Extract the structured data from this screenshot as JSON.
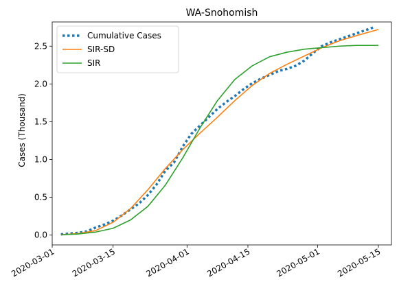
{
  "chart_data": {
    "type": "line",
    "title": "WA-Snohomish",
    "xlabel": "",
    "ylabel": "Cases (Thousand)",
    "x_axis": "date",
    "xlim": [
      "2020-03-01",
      "2020-05-18"
    ],
    "ylim": [
      -0.13,
      2.82
    ],
    "x_ticks": [
      "2020-03-01",
      "2020-03-15",
      "2020-04-01",
      "2020-04-15",
      "2020-05-01",
      "2020-05-15"
    ],
    "y_ticks": [
      0.0,
      0.5,
      1.0,
      1.5,
      2.0,
      2.5
    ],
    "y_tick_labels": [
      "0.0",
      "0.5",
      "1.0",
      "1.5",
      "2.0",
      "2.5"
    ],
    "grid": false,
    "legend": "top-left",
    "series": [
      {
        "name": "Cumulative Cases",
        "style": "dotted",
        "color": "#1f77b4",
        "points": [
          [
            "2020-03-03",
            0.01
          ],
          [
            "2020-03-05",
            0.02
          ],
          [
            "2020-03-07",
            0.03
          ],
          [
            "2020-03-09",
            0.05
          ],
          [
            "2020-03-11",
            0.1
          ],
          [
            "2020-03-13",
            0.14
          ],
          [
            "2020-03-15",
            0.19
          ],
          [
            "2020-03-17",
            0.26
          ],
          [
            "2020-03-19",
            0.34
          ],
          [
            "2020-03-21",
            0.42
          ],
          [
            "2020-03-23",
            0.53
          ],
          [
            "2020-03-25",
            0.67
          ],
          [
            "2020-03-27",
            0.85
          ],
          [
            "2020-03-29",
            0.96
          ],
          [
            "2020-03-31",
            1.17
          ],
          [
            "2020-04-02",
            1.34
          ],
          [
            "2020-04-04",
            1.45
          ],
          [
            "2020-04-06",
            1.56
          ],
          [
            "2020-04-08",
            1.67
          ],
          [
            "2020-04-10",
            1.76
          ],
          [
            "2020-04-12",
            1.84
          ],
          [
            "2020-04-14",
            1.93
          ],
          [
            "2020-04-16",
            2.01
          ],
          [
            "2020-04-18",
            2.07
          ],
          [
            "2020-04-20",
            2.12
          ],
          [
            "2020-04-22",
            2.17
          ],
          [
            "2020-04-24",
            2.2
          ],
          [
            "2020-04-26",
            2.24
          ],
          [
            "2020-04-28",
            2.31
          ],
          [
            "2020-04-30",
            2.41
          ],
          [
            "2020-05-02",
            2.5
          ],
          [
            "2020-05-04",
            2.55
          ],
          [
            "2020-05-06",
            2.59
          ],
          [
            "2020-05-08",
            2.63
          ],
          [
            "2020-05-10",
            2.67
          ],
          [
            "2020-05-12",
            2.71
          ],
          [
            "2020-05-14",
            2.75
          ]
        ]
      },
      {
        "name": "SIR-SD",
        "style": "solid",
        "color": "#ff7f0e",
        "points": [
          [
            "2020-03-03",
            0.005
          ],
          [
            "2020-03-07",
            0.02
          ],
          [
            "2020-03-11",
            0.06
          ],
          [
            "2020-03-15",
            0.17
          ],
          [
            "2020-03-19",
            0.35
          ],
          [
            "2020-03-23",
            0.6
          ],
          [
            "2020-03-27",
            0.88
          ],
          [
            "2020-03-31",
            1.13
          ],
          [
            "2020-04-04",
            1.35
          ],
          [
            "2020-04-08",
            1.56
          ],
          [
            "2020-04-12",
            1.78
          ],
          [
            "2020-04-16",
            1.98
          ],
          [
            "2020-04-20",
            2.14
          ],
          [
            "2020-04-24",
            2.26
          ],
          [
            "2020-04-28",
            2.37
          ],
          [
            "2020-05-02",
            2.48
          ],
          [
            "2020-05-06",
            2.57
          ],
          [
            "2020-05-10",
            2.64
          ],
          [
            "2020-05-15",
            2.72
          ]
        ]
      },
      {
        "name": "SIR",
        "style": "solid",
        "color": "#2ca02c",
        "points": [
          [
            "2020-03-03",
            0.004
          ],
          [
            "2020-03-07",
            0.015
          ],
          [
            "2020-03-11",
            0.04
          ],
          [
            "2020-03-15",
            0.09
          ],
          [
            "2020-03-19",
            0.2
          ],
          [
            "2020-03-23",
            0.38
          ],
          [
            "2020-03-27",
            0.66
          ],
          [
            "2020-03-31",
            1.02
          ],
          [
            "2020-04-04",
            1.42
          ],
          [
            "2020-04-08",
            1.78
          ],
          [
            "2020-04-12",
            2.06
          ],
          [
            "2020-04-16",
            2.24
          ],
          [
            "2020-04-20",
            2.36
          ],
          [
            "2020-04-24",
            2.42
          ],
          [
            "2020-04-28",
            2.46
          ],
          [
            "2020-05-02",
            2.48
          ],
          [
            "2020-05-06",
            2.5
          ],
          [
            "2020-05-10",
            2.51
          ],
          [
            "2020-05-15",
            2.51
          ]
        ]
      }
    ]
  }
}
